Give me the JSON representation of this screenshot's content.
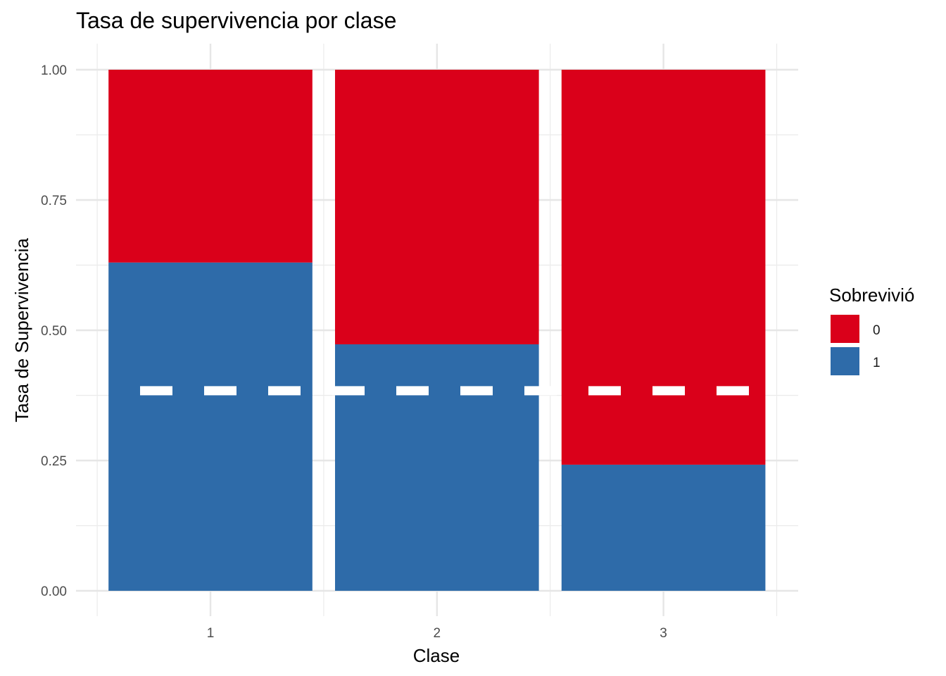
{
  "chart_data": {
    "type": "bar",
    "stacked": "fill",
    "title": "Tasa de supervivencia por clase",
    "xlabel": "Clase",
    "ylabel": "Tasa de Supervivencia",
    "categories": [
      "1",
      "2",
      "3"
    ],
    "series": [
      {
        "name": "0",
        "color": "#DA001A",
        "values": [
          0.37,
          0.527,
          0.758
        ]
      },
      {
        "name": "1",
        "color": "#2E6BA9",
        "values": [
          0.63,
          0.473,
          0.242
        ]
      }
    ],
    "ylim": [
      0,
      1
    ],
    "yticks": [
      "0.00",
      "0.25",
      "0.50",
      "0.75",
      "1.00"
    ],
    "ytick_values": [
      0,
      0.25,
      0.5,
      0.75,
      1
    ],
    "reference_line": {
      "y": 0.384,
      "style": "dashed",
      "color": "#FFFFFF"
    },
    "legend": {
      "title": "Sobrevivió",
      "position": "right"
    },
    "grid": true
  }
}
